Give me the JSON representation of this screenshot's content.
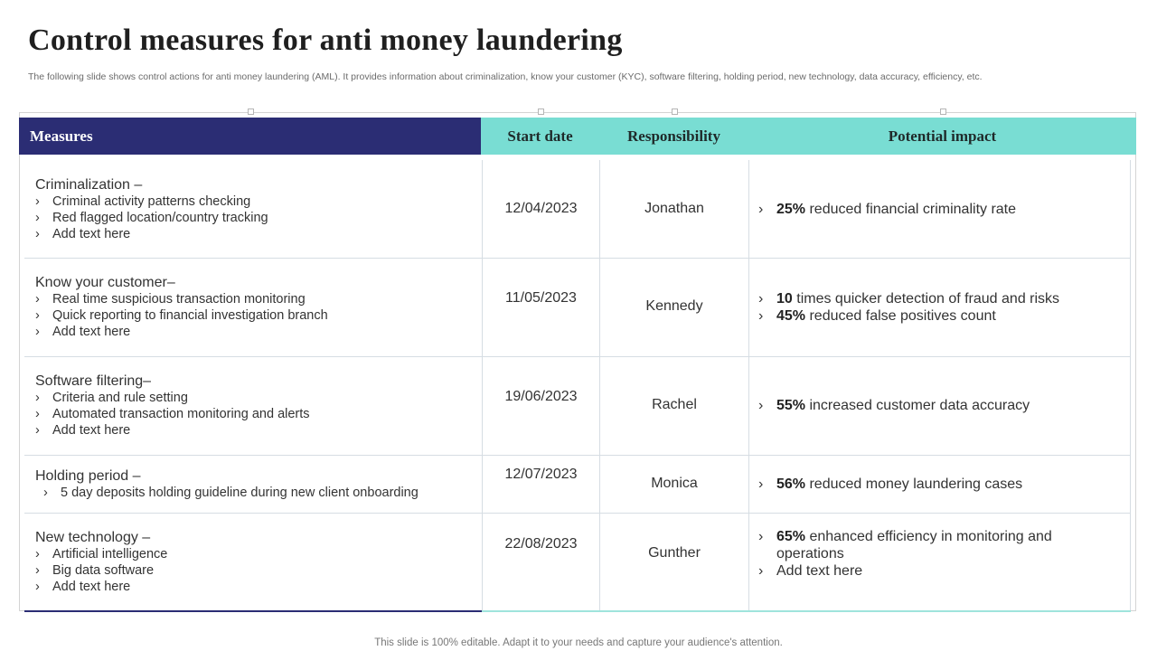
{
  "title": "Control measures for anti money laundering",
  "subtitle": "The following slide shows control actions for anti money laundering (AML). It provides information about criminalization, know your customer (KYC), software filtering, holding period, new technology, data accuracy, efficiency, etc.",
  "table": {
    "headers": {
      "measures": "Measures",
      "start_date": "Start date",
      "responsibility": "Responsibility",
      "impact": "Potential impact"
    },
    "bullet_glyph": "›",
    "rows": [
      {
        "measure": "Criminalization –",
        "points": [
          "Criminal activity patterns checking",
          "Red flagged location/country tracking",
          "Add text here"
        ],
        "date": "12/04/2023",
        "responsibility": "Jonathan",
        "impacts": [
          {
            "bold": "25%",
            "text": " reduced financial criminality rate"
          }
        ]
      },
      {
        "measure": "Know your customer–",
        "points": [
          "Real time suspicious transaction monitoring",
          "Quick reporting to financial investigation branch",
          "Add text here"
        ],
        "date": "11/05/2023",
        "responsibility": "Kennedy",
        "impacts": [
          {
            "bold": "10",
            "text": " times quicker detection of fraud and risks"
          },
          {
            "bold": "45%",
            "text": " reduced false positives count"
          }
        ]
      },
      {
        "measure": "Software filtering–",
        "points": [
          "Criteria and rule setting",
          "Automated transaction monitoring and alerts",
          "Add text here"
        ],
        "date": "19/06/2023",
        "responsibility": "Rachel",
        "impacts": [
          {
            "bold": "55%",
            "text": " increased customer data accuracy"
          }
        ]
      },
      {
        "measure": "Holding period –",
        "points": [
          "5 day deposits holding guideline during new client onboarding"
        ],
        "date": "12/07/2023",
        "responsibility": "Monica",
        "impacts": [
          {
            "bold": "56%",
            "text": " reduced money laundering cases"
          }
        ]
      },
      {
        "measure": "New technology  –",
        "points": [
          "Artificial intelligence",
          "Big data software",
          "Add text here"
        ],
        "date": "22/08/2023",
        "responsibility": "Gunther",
        "impacts": [
          {
            "bold": "65%",
            "text": " enhanced efficiency in monitoring and operations"
          },
          {
            "bold": "",
            "text": "Add text here"
          }
        ]
      }
    ]
  },
  "footer": "This slide is 100% editable. Adapt it to your needs and capture your audience's attention.",
  "colors": {
    "header_navy": "#2b2d74",
    "header_teal": "#79ddd3",
    "grid": "#d6dde3"
  }
}
